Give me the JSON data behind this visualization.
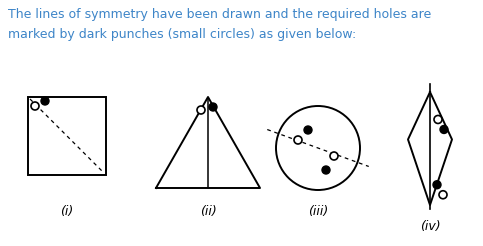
{
  "title_text": "The lines of symmetry have been drawn and the required holes are\nmarked by dark punches (small circles) as given below:",
  "title_color": "#3d85c8",
  "labels": [
    "(i)",
    "(ii)",
    "(iii)",
    "(iv)"
  ],
  "fig_width": 4.83,
  "fig_height": 2.46,
  "dpi": 100,
  "background": "#ffffff"
}
